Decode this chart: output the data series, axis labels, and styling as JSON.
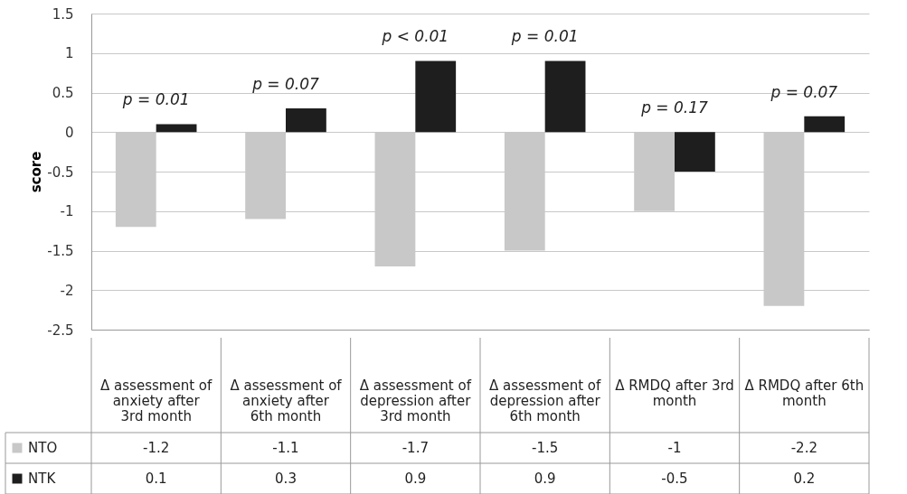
{
  "chart_data": {
    "type": "bar",
    "ylabel": "score",
    "categories": [
      "Δ assessment of anxiety after 3rd month",
      "Δ assessment of anxiety after 6th month",
      "Δ assessment of depression after 3rd month",
      "Δ assessment of depression after 6th month",
      "Δ RMDQ after 3rd month",
      "Δ RMDQ after 6th month"
    ],
    "series": [
      {
        "name": "NTO",
        "color": "#c8c8c8",
        "values": [
          -1.2,
          -1.1,
          -1.7,
          -1.5,
          -1,
          -2.2
        ]
      },
      {
        "name": "NTK",
        "color": "#1e1e1e",
        "values": [
          0.1,
          0.3,
          0.9,
          0.9,
          -0.5,
          0.2
        ]
      }
    ],
    "ylim": [
      -2.5,
      1.5
    ],
    "yticks": [
      -2.5,
      -2,
      -1.5,
      -1,
      -0.5,
      0,
      0.5,
      1,
      1.5
    ],
    "grid": "y",
    "legend": "bottom left",
    "data_labels": true,
    "annotations": [
      "p = 0.01",
      "p = 0.07",
      "p < 0.01",
      "p = 0.01",
      "p = 0.17",
      "p = 0.07"
    ]
  }
}
